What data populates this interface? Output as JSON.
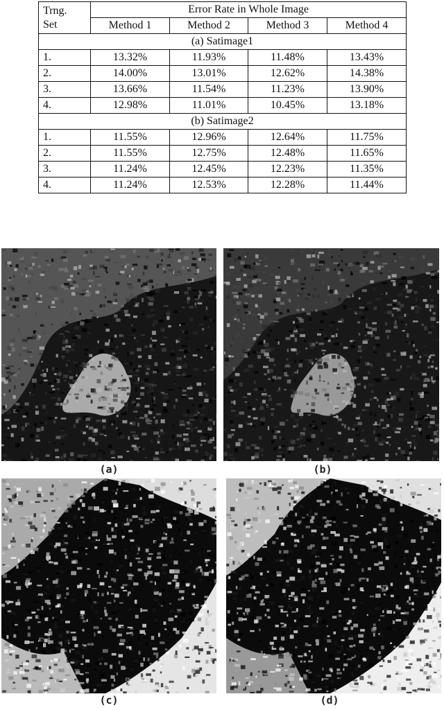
{
  "table": {
    "header": {
      "set": [
        "Trng.",
        "Set"
      ],
      "group": "Error Rate in Whole Image",
      "methods": [
        "Method 1",
        "Method 2",
        "Method 3",
        "Method 4"
      ]
    },
    "sections": [
      {
        "title": "(a) Satimage1",
        "rows": [
          [
            "1.",
            "13.32%",
            "11.93%",
            "11.48%",
            "13.43%"
          ],
          [
            "2.",
            "14.00%",
            "13.01%",
            "12.62%",
            "14.38%"
          ],
          [
            "3.",
            "13.66%",
            "11.54%",
            "11.23%",
            "13.90%"
          ],
          [
            "4.",
            "12.98%",
            "11.01%",
            "10.45%",
            "13.18%"
          ]
        ]
      },
      {
        "title": "(b) Satimage2",
        "rows": [
          [
            "1.",
            "11.55%",
            "12.96%",
            "12.64%",
            "11.75%"
          ],
          [
            "2.",
            "11.55%",
            "12.75%",
            "12.48%",
            "11.65%"
          ],
          [
            "3.",
            "11.24%",
            "12.45%",
            "12.23%",
            "11.35%"
          ],
          [
            "4.",
            "11.24%",
            "12.53%",
            "12.28%",
            "11.44%"
          ]
        ]
      }
    ]
  },
  "figures": {
    "captions": [
      "(a)",
      "(b)",
      "(c)",
      "(d)"
    ]
  }
}
